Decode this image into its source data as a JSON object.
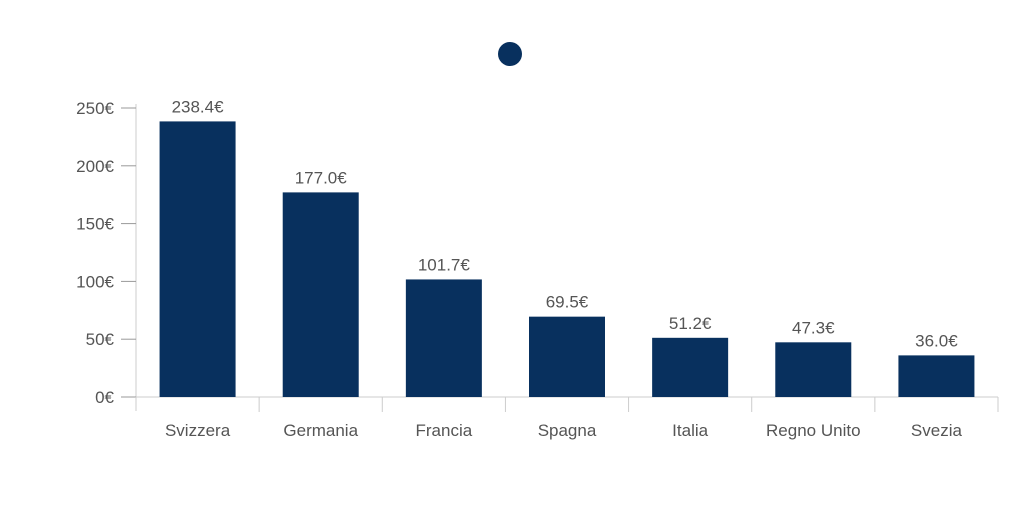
{
  "chart_data": {
    "type": "bar",
    "title": "",
    "xlabel": "",
    "ylabel": "",
    "legend": {
      "placement": "top-center",
      "marker": "circle",
      "label": ""
    },
    "categories": [
      "Svizzera",
      "Germania",
      "Francia",
      "Spagna",
      "Italia",
      "Regno Unito",
      "Svezia"
    ],
    "values": [
      238.4,
      177.0,
      101.7,
      69.5,
      51.2,
      47.3,
      36.0
    ],
    "value_labels": [
      "238.4€",
      "177.0€",
      "101.7€",
      "69.5€",
      "51.2€",
      "47.3€",
      "36.0€"
    ],
    "ylim": [
      0,
      250
    ],
    "y_ticks": [
      0,
      50,
      100,
      150,
      200,
      250
    ],
    "y_tick_labels": [
      "0€",
      "50€",
      "100€",
      "150€",
      "200€",
      "250€"
    ],
    "grid": false,
    "colors": {
      "bar": "#08305e",
      "axis": "#cccccc",
      "text": "#555555"
    }
  }
}
